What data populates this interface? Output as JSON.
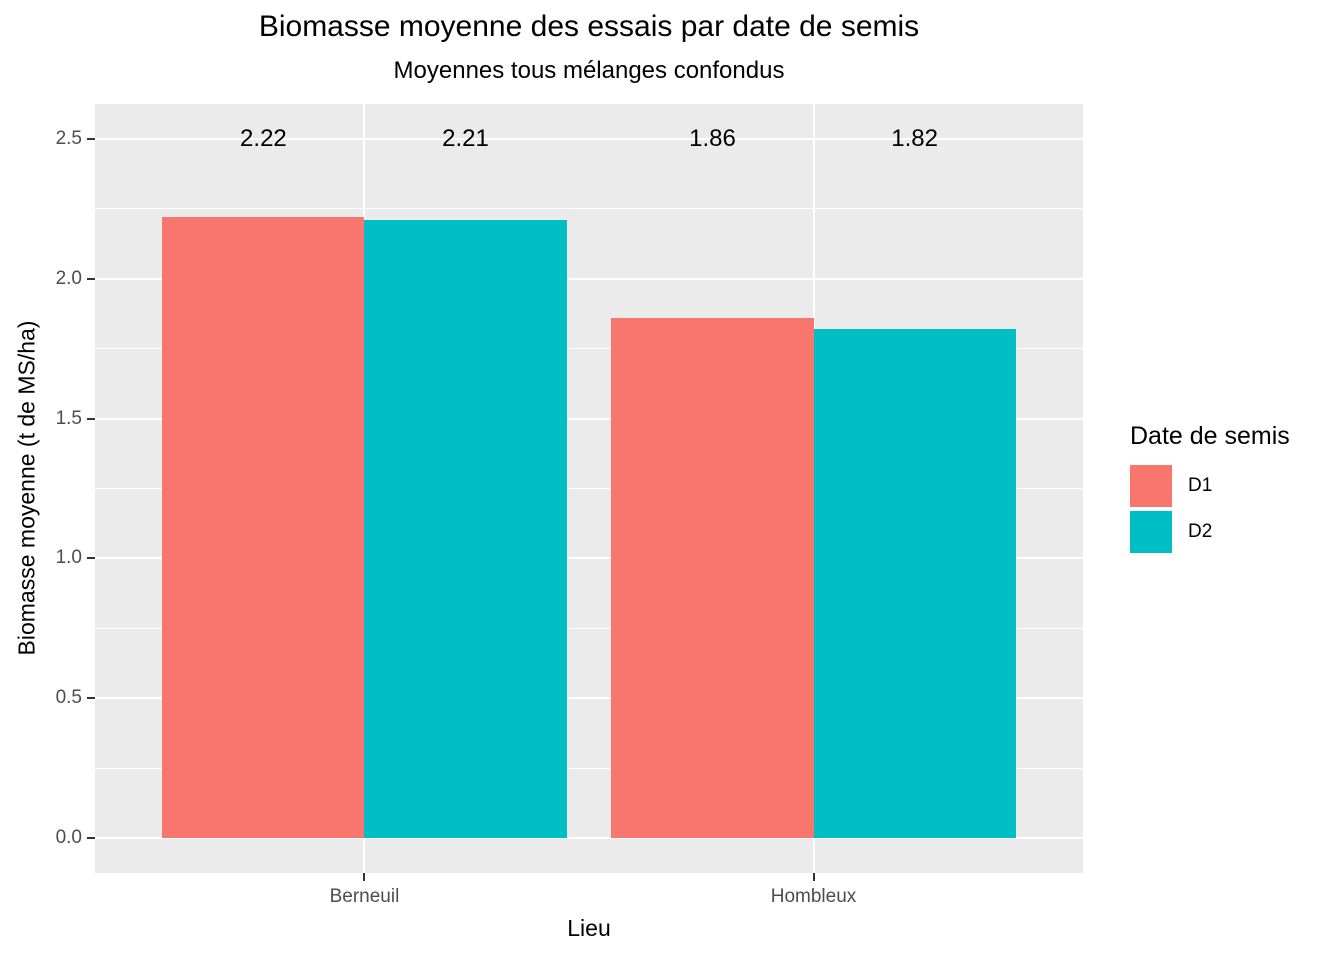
{
  "chart_data": {
    "type": "bar",
    "title": "Biomasse moyenne des essais par date de semis",
    "subtitle": "Moyennes tous mélanges confondus",
    "xlabel": "Lieu",
    "ylabel": "Biomasse moyenne (t de MS/ha)",
    "categories": [
      "Berneuil",
      "Hombleux"
    ],
    "series": [
      {
        "name": "D1",
        "color": "#F8766D",
        "values": [
          2.22,
          1.86
        ]
      },
      {
        "name": "D2",
        "color": "#00BFC4",
        "values": [
          2.21,
          1.82
        ]
      }
    ],
    "bar_value_labels": [
      [
        "2.22",
        "1.86"
      ],
      [
        "2.21",
        "1.82"
      ]
    ],
    "value_label_y": 2.5,
    "y_major_ticks": [
      0.0,
      0.5,
      1.0,
      1.5,
      2.0,
      2.5
    ],
    "y_tick_labels": [
      "0.0",
      "0.5",
      "1.0",
      "1.5",
      "2.0",
      "2.5"
    ],
    "y_minor_step": 0.25,
    "ylim": [
      -0.125,
      2.625
    ],
    "grid": true,
    "legend_title": "Date de semis",
    "legend_position": "right",
    "colors": {
      "panel_background": "#EBEBEB",
      "gridline": "#FFFFFF",
      "tick_mark": "#333333",
      "tick_label": "#4D4D4D",
      "text": "#000000"
    }
  }
}
